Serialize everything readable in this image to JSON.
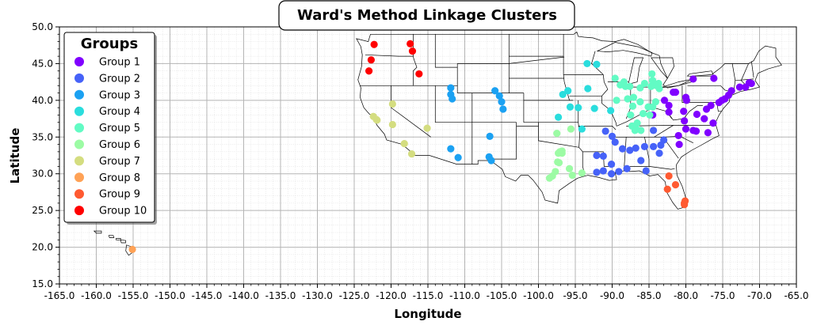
{
  "chart_data": {
    "type": "scatter",
    "title": "Ward's Method Linkage Clusters",
    "xlabel": "Longitude",
    "ylabel": "Latitude",
    "xlim": [
      -165,
      -65
    ],
    "ylim": [
      15,
      50
    ],
    "x_ticks": [
      "-165.0",
      "-160.0",
      "-155.0",
      "-150.0",
      "-145.0",
      "-140.0",
      "-135.0",
      "-130.0",
      "-125.0",
      "-120.0",
      "-115.0",
      "-110.0",
      "-105.0",
      "-100.0",
      "-95.0",
      "-90.0",
      "-85.0",
      "-80.0",
      "-75.0",
      "-70.0",
      "-65.0"
    ],
    "y_ticks": [
      "15.0",
      "20.0",
      "25.0",
      "30.0",
      "35.0",
      "40.0",
      "45.0",
      "50.0"
    ],
    "grid": true,
    "basemap": "US state outlines",
    "legend": {
      "title": "Groups",
      "position": "top-left",
      "entries": [
        "Group 1",
        "Group 2",
        "Group 3",
        "Group 4",
        "Group 5",
        "Group 6",
        "Group 7",
        "Group 8",
        "Group 9",
        "Group 10"
      ]
    },
    "series": [
      {
        "name": "Group 1",
        "color": "#8000ff",
        "points": [
          [
            -82.9,
            40.0
          ],
          [
            -81.7,
            41.1
          ],
          [
            -81.4,
            41.1
          ],
          [
            -80.0,
            40.4
          ],
          [
            -79.9,
            40.0
          ],
          [
            -79.0,
            42.9
          ],
          [
            -78.5,
            38.1
          ],
          [
            -77.5,
            37.5
          ],
          [
            -77.2,
            38.8
          ],
          [
            -76.6,
            39.3
          ],
          [
            -76.2,
            43.0
          ],
          [
            -75.5,
            39.7
          ],
          [
            -75.1,
            40.0
          ],
          [
            -74.7,
            40.2
          ],
          [
            -74.2,
            40.7
          ],
          [
            -73.8,
            41.3
          ],
          [
            -72.7,
            41.8
          ],
          [
            -71.9,
            41.8
          ],
          [
            -71.4,
            42.4
          ],
          [
            -71.1,
            42.3
          ],
          [
            -80.2,
            37.2
          ],
          [
            -81.0,
            35.2
          ],
          [
            -80.0,
            36.1
          ],
          [
            -79.0,
            35.9
          ],
          [
            -78.6,
            35.8
          ],
          [
            -76.3,
            36.9
          ],
          [
            -82.3,
            38.4
          ],
          [
            -84.5,
            38.0
          ],
          [
            -80.9,
            34.0
          ],
          [
            -80.3,
            38.5
          ],
          [
            -82.3,
            39.3
          ],
          [
            -77.0,
            35.6
          ]
        ]
      },
      {
        "name": "Group 2",
        "color": "#4662f8",
        "points": [
          [
            -90.9,
            35.8
          ],
          [
            -90.0,
            35.1
          ],
          [
            -89.6,
            34.3
          ],
          [
            -88.6,
            33.4
          ],
          [
            -87.6,
            33.2
          ],
          [
            -86.8,
            33.5
          ],
          [
            -85.6,
            33.7
          ],
          [
            -84.4,
            33.7
          ],
          [
            -83.4,
            33.9
          ],
          [
            -83.0,
            34.6
          ],
          [
            -84.4,
            35.9
          ],
          [
            -89.1,
            30.3
          ],
          [
            -90.1,
            31.3
          ],
          [
            -91.2,
            32.4
          ],
          [
            -92.1,
            32.5
          ],
          [
            -92.1,
            30.2
          ],
          [
            -91.2,
            30.4
          ],
          [
            -90.1,
            30.0
          ],
          [
            -88.0,
            30.7
          ],
          [
            -85.4,
            30.4
          ],
          [
            -86.1,
            31.8
          ],
          [
            -83.6,
            32.8
          ]
        ]
      },
      {
        "name": "Group 3",
        "color": "#1ba1f2",
        "points": [
          [
            -111.9,
            41.7
          ],
          [
            -111.9,
            40.8
          ],
          [
            -111.7,
            40.2
          ],
          [
            -105.3,
            40.6
          ],
          [
            -105.0,
            39.8
          ],
          [
            -104.8,
            38.8
          ],
          [
            -105.9,
            41.3
          ],
          [
            -106.6,
            35.1
          ],
          [
            -111.9,
            33.4
          ],
          [
            -110.9,
            32.2
          ],
          [
            -106.4,
            31.8
          ],
          [
            -106.7,
            32.3
          ]
        ]
      },
      {
        "name": "Group 4",
        "color": "#2adddd",
        "points": [
          [
            -96.0,
            41.3
          ],
          [
            -96.7,
            40.8
          ],
          [
            -95.7,
            39.1
          ],
          [
            -97.3,
            37.7
          ],
          [
            -94.6,
            39.0
          ],
          [
            -93.3,
            41.6
          ],
          [
            -92.1,
            44.9
          ],
          [
            -93.4,
            45.0
          ],
          [
            -90.2,
            38.6
          ],
          [
            -92.4,
            38.9
          ],
          [
            -94.1,
            36.1
          ]
        ]
      },
      {
        "name": "Group 5",
        "color": "#62fbc4",
        "points": [
          [
            -89.6,
            43.0
          ],
          [
            -88.9,
            42.1
          ],
          [
            -87.6,
            41.9
          ],
          [
            -86.2,
            41.7
          ],
          [
            -85.6,
            42.3
          ],
          [
            -84.5,
            42.7
          ],
          [
            -83.7,
            42.3
          ],
          [
            -83.6,
            41.6
          ],
          [
            -87.9,
            40.2
          ],
          [
            -87.1,
            40.4
          ],
          [
            -86.2,
            39.8
          ],
          [
            -85.1,
            39.1
          ],
          [
            -84.5,
            39.1
          ],
          [
            -84.1,
            39.8
          ],
          [
            -84.6,
            43.6
          ],
          [
            -84.7,
            41.9
          ],
          [
            -84.0,
            42.0
          ],
          [
            -88.2,
            41.9
          ],
          [
            -89.4,
            40.0
          ],
          [
            -87.5,
            38.0
          ],
          [
            -86.8,
            36.2
          ],
          [
            -86.6,
            36.9
          ],
          [
            -85.8,
            38.2
          ],
          [
            -84.9,
            38.0
          ],
          [
            -86.9,
            35.9
          ],
          [
            -86.1,
            35.9
          ],
          [
            -87.3,
            36.5
          ],
          [
            -88.4,
            42.5
          ],
          [
            -87.2,
            39.2
          ]
        ]
      },
      {
        "name": "Group 6",
        "color": "#9cfba4",
        "points": [
          [
            -97.3,
            32.8
          ],
          [
            -96.8,
            32.8
          ],
          [
            -97.1,
            33.0
          ],
          [
            -96.8,
            33.1
          ],
          [
            -97.7,
            30.3
          ],
          [
            -98.5,
            29.4
          ],
          [
            -98.1,
            29.7
          ],
          [
            -97.2,
            31.5
          ],
          [
            -95.4,
            29.8
          ],
          [
            -95.8,
            30.7
          ],
          [
            -94.1,
            30.1
          ],
          [
            -95.6,
            36.1
          ],
          [
            -97.5,
            35.5
          ],
          [
            -97.4,
            31.6
          ]
        ]
      },
      {
        "name": "Group 7",
        "color": "#d4dd80",
        "points": [
          [
            -122.4,
            37.8
          ],
          [
            -122.0,
            37.4
          ],
          [
            -121.9,
            37.3
          ],
          [
            -119.8,
            36.7
          ],
          [
            -118.2,
            34.1
          ],
          [
            -117.2,
            32.7
          ],
          [
            -115.1,
            36.2
          ],
          [
            -119.8,
            39.5
          ]
        ]
      },
      {
        "name": "Group 8",
        "color": "#ffa256",
        "points": [
          [
            -155.1,
            19.7
          ]
        ]
      },
      {
        "name": "Group 9",
        "color": "#ff5a31",
        "points": [
          [
            -82.5,
            27.9
          ],
          [
            -81.4,
            28.5
          ],
          [
            -80.2,
            25.8
          ],
          [
            -80.1,
            26.3
          ],
          [
            -80.2,
            26.0
          ],
          [
            -82.3,
            29.7
          ]
        ]
      },
      {
        "name": "Group 10",
        "color": "#ff0000",
        "points": [
          [
            -122.3,
            47.6
          ],
          [
            -122.7,
            45.5
          ],
          [
            -123.0,
            44.0
          ],
          [
            -117.4,
            47.7
          ],
          [
            -116.2,
            43.6
          ],
          [
            -117.1,
            46.7
          ]
        ]
      }
    ]
  }
}
